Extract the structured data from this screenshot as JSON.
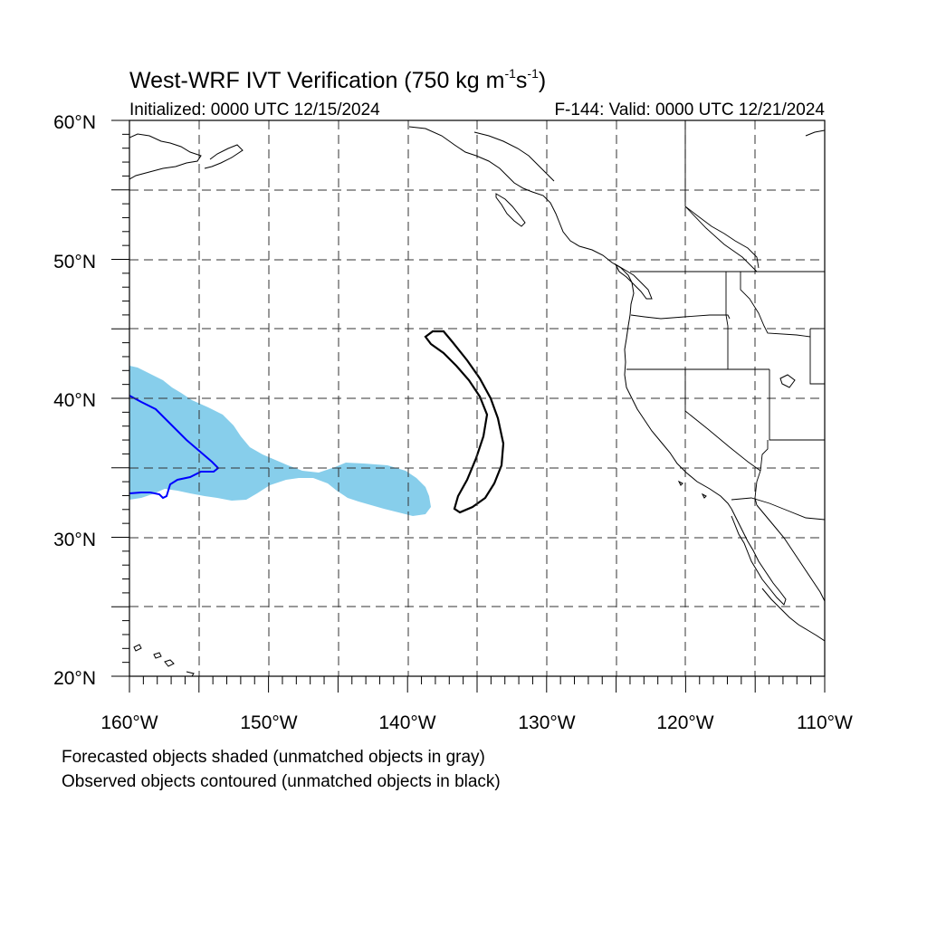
{
  "title_main": "West-WRF IVT Verification (750 kg m",
  "title_exp1": "-1",
  "title_mid": "s",
  "title_exp2": "-1",
  "title_close": ")",
  "init_text": "Initialized: 0000 UTC 12/15/2024",
  "valid_text": "F-144: Valid: 0000 UTC 12/21/2024",
  "lat_labels": [
    "60°N",
    "50°N",
    "40°N",
    "30°N",
    "20°N"
  ],
  "lon_labels": [
    "160°W",
    "150°W",
    "140°W",
    "130°W",
    "120°W",
    "110°W"
  ],
  "footnote_forecast": "Forecasted objects shaded (unmatched objects in gray)",
  "footnote_observed": "Observed objects contoured (unmatched objects in black)",
  "colors": {
    "forecast_matched_fill": "#87ceeb",
    "observed_matched_contour": "#0000ff",
    "observed_unmatched_contour": "#000000"
  }
}
